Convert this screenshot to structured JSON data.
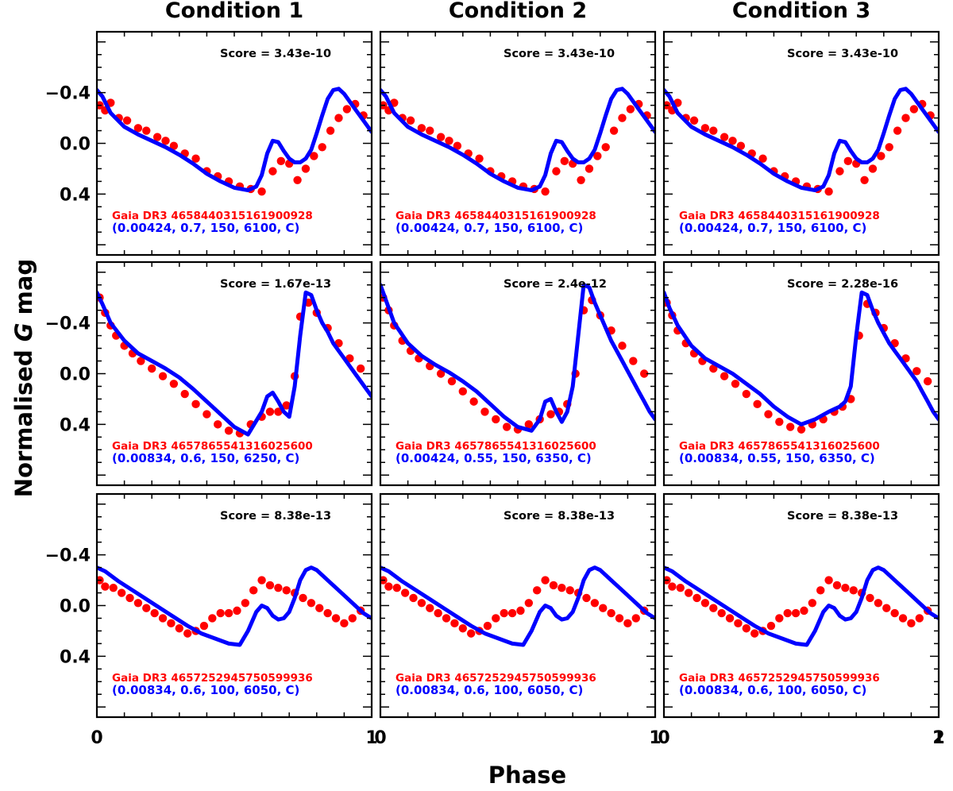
{
  "figure": {
    "ylabel_prefix": "Normalised ",
    "ylabel_var": "G",
    "ylabel_suffix": " mag",
    "xlabel": "Phase",
    "column_titles": [
      "Condition 1",
      "Condition 2",
      "Condition 3"
    ]
  },
  "colors": {
    "observed": "#ff0000",
    "model": "#0000ff",
    "score_text": "#000000",
    "axes": "#000000"
  },
  "chart_data": [
    {
      "type": "scatter+line",
      "row": 0,
      "col": 0,
      "score_text": "Score = 3.43e-10",
      "gaia_id": "Gaia DR3 4658440315161900928",
      "params": "(0.00424, 0.7, 150, 6100, C)",
      "shape": "A",
      "ylim": [
        0.88,
        -0.88
      ],
      "xlim": [
        0,
        1
      ],
      "yticks": [
        "−0.4",
        "0.0",
        "0.4"
      ],
      "ytick_values": [
        -0.4,
        0.0,
        0.4
      ],
      "xticks": [
        "0",
        "1"
      ],
      "xtick_values": [
        0,
        1
      ]
    },
    {
      "type": "scatter+line",
      "row": 0,
      "col": 1,
      "score_text": "Score = 3.43e-10",
      "gaia_id": "Gaia DR3 4658440315161900928",
      "params": "(0.00424, 0.7, 150, 6100, C)",
      "shape": "A",
      "ylim": [
        0.88,
        -0.88
      ],
      "xlim": [
        0,
        1
      ],
      "xticks": [
        "1"
      ],
      "xtick_values": [
        1
      ]
    },
    {
      "type": "scatter+line",
      "row": 0,
      "col": 2,
      "score_text": "Score = 3.43e-10",
      "gaia_id": "Gaia DR3 4658440315161900928",
      "params": "(0.00424, 0.7, 150, 6100, C)",
      "shape": "A",
      "ylim": [
        0.88,
        -0.88
      ],
      "xlim": [
        0,
        1
      ],
      "xticks": [
        "1",
        "2"
      ],
      "xtick_values": [
        1,
        2
      ]
    },
    {
      "type": "scatter+line",
      "row": 1,
      "col": 0,
      "score_text": "Score = 1.67e-13",
      "gaia_id": "Gaia DR3 4657865541316025600",
      "params": "(0.00834, 0.6, 150, 6250, C)",
      "shape": "B",
      "ylim": [
        0.88,
        -0.88
      ],
      "xlim": [
        0,
        1
      ],
      "yticks": [
        "−0.4",
        "0.0",
        "0.4"
      ],
      "ytick_values": [
        -0.4,
        0.0,
        0.4
      ]
    },
    {
      "type": "scatter+line",
      "row": 1,
      "col": 1,
      "score_text": "Score = 2.4e-12",
      "gaia_id": "Gaia DR3 4657865541316025600",
      "params": "(0.00424, 0.55, 150, 6350, C)",
      "shape": "B2",
      "ylim": [
        0.88,
        -0.88
      ],
      "xlim": [
        0,
        1
      ]
    },
    {
      "type": "scatter+line",
      "row": 1,
      "col": 2,
      "score_text": "Score = 2.28e-16",
      "gaia_id": "Gaia DR3 4657865541316025600",
      "params": "(0.00834, 0.55, 150, 6350, C)",
      "shape": "B3",
      "ylim": [
        0.88,
        -0.88
      ],
      "xlim": [
        0,
        1
      ]
    },
    {
      "type": "scatter+line",
      "row": 2,
      "col": 0,
      "score_text": "Score = 8.38e-13",
      "gaia_id": "Gaia DR3 4657252945750599936",
      "params": "(0.00834, 0.6, 100, 6050, C)",
      "shape": "C",
      "ylim": [
        0.88,
        -0.88
      ],
      "xlim": [
        0,
        1
      ],
      "yticks": [
        "−0.4",
        "0.0",
        "0.4"
      ],
      "ytick_values": [
        -0.4,
        0.0,
        0.4
      ],
      "xticks": [
        "0",
        "1"
      ],
      "xtick_values": [
        0,
        1
      ]
    },
    {
      "type": "scatter+line",
      "row": 2,
      "col": 1,
      "score_text": "Score = 8.38e-13",
      "gaia_id": "Gaia DR3 4657252945750599936",
      "params": "(0.00834, 0.6, 100, 6050, C)",
      "shape": "C",
      "ylim": [
        0.88,
        -0.88
      ],
      "xlim": [
        0,
        1
      ],
      "xticks": [
        "0",
        "1"
      ],
      "xtick_values": [
        0,
        1
      ]
    },
    {
      "type": "scatter+line",
      "row": 2,
      "col": 2,
      "score_text": "Score = 8.38e-13",
      "gaia_id": "Gaia DR3 4657252945750599936",
      "params": "(0.00834, 0.6, 100, 6050, C)",
      "shape": "C",
      "ylim": [
        0.88,
        -0.88
      ],
      "xlim": [
        0,
        1
      ],
      "xticks": [
        "0",
        "1",
        "2"
      ],
      "xtick_values": [
        0,
        1,
        2
      ]
    }
  ],
  "curves": {
    "A": {
      "model_phase": [
        0.0,
        0.02,
        0.05,
        0.1,
        0.15,
        0.2,
        0.25,
        0.3,
        0.35,
        0.4,
        0.45,
        0.5,
        0.55,
        0.58,
        0.6,
        0.62,
        0.64,
        0.66,
        0.68,
        0.7,
        0.72,
        0.74,
        0.76,
        0.78,
        0.8,
        0.82,
        0.84,
        0.86,
        0.88,
        0.9,
        0.92,
        0.94,
        0.96,
        0.98,
        1.0
      ],
      "model_mag": [
        -0.42,
        -0.37,
        -0.24,
        -0.13,
        -0.07,
        -0.02,
        0.03,
        0.09,
        0.16,
        0.24,
        0.3,
        0.35,
        0.37,
        0.34,
        0.25,
        0.08,
        -0.02,
        -0.01,
        0.06,
        0.12,
        0.15,
        0.15,
        0.12,
        0.05,
        -0.08,
        -0.22,
        -0.35,
        -0.42,
        -0.43,
        -0.39,
        -0.33,
        -0.27,
        -0.21,
        -0.15,
        -0.09
      ],
      "obs_phase": [
        0.01,
        0.03,
        0.05,
        0.08,
        0.11,
        0.15,
        0.18,
        0.22,
        0.25,
        0.28,
        0.32,
        0.36,
        0.4,
        0.44,
        0.48,
        0.52,
        0.56,
        0.6,
        0.64,
        0.67,
        0.7,
        0.73,
        0.76,
        0.79,
        0.82,
        0.85,
        0.88,
        0.91,
        0.94,
        0.97
      ],
      "obs_mag": [
        -0.3,
        -0.26,
        -0.32,
        -0.2,
        -0.18,
        -0.12,
        -0.1,
        -0.05,
        -0.02,
        0.02,
        0.08,
        0.12,
        0.22,
        0.26,
        0.3,
        0.34,
        0.36,
        0.38,
        0.22,
        0.14,
        0.16,
        0.29,
        0.2,
        0.1,
        0.03,
        -0.1,
        -0.2,
        -0.27,
        -0.31,
        -0.22
      ]
    },
    "B": {
      "model_phase": [
        0.0,
        0.02,
        0.05,
        0.1,
        0.15,
        0.2,
        0.25,
        0.3,
        0.35,
        0.4,
        0.45,
        0.5,
        0.55,
        0.6,
        0.62,
        0.64,
        0.66,
        0.68,
        0.7,
        0.72,
        0.74,
        0.76,
        0.78,
        0.8,
        0.82,
        0.84,
        0.86,
        0.88,
        0.9,
        0.92,
        0.94,
        0.96,
        0.98,
        1.0
      ],
      "model_mag": [
        -0.64,
        -0.55,
        -0.4,
        -0.26,
        -0.16,
        -0.1,
        -0.04,
        0.03,
        0.12,
        0.22,
        0.32,
        0.42,
        0.48,
        0.3,
        0.18,
        0.15,
        0.22,
        0.3,
        0.34,
        0.1,
        -0.3,
        -0.64,
        -0.62,
        -0.5,
        -0.4,
        -0.33,
        -0.24,
        -0.18,
        -0.12,
        -0.06,
        0.0,
        0.06,
        0.12,
        0.18
      ],
      "obs_phase": [
        0.01,
        0.03,
        0.05,
        0.07,
        0.1,
        0.13,
        0.16,
        0.2,
        0.24,
        0.28,
        0.32,
        0.36,
        0.4,
        0.44,
        0.48,
        0.52,
        0.56,
        0.6,
        0.63,
        0.66,
        0.69,
        0.72,
        0.74,
        0.77,
        0.8,
        0.84,
        0.88,
        0.92,
        0.96
      ],
      "obs_mag": [
        -0.6,
        -0.48,
        -0.38,
        -0.3,
        -0.22,
        -0.16,
        -0.1,
        -0.04,
        0.02,
        0.08,
        0.16,
        0.24,
        0.32,
        0.4,
        0.45,
        0.47,
        0.4,
        0.34,
        0.3,
        0.3,
        0.25,
        0.02,
        -0.45,
        -0.56,
        -0.48,
        -0.36,
        -0.24,
        -0.12,
        -0.04
      ]
    },
    "B2": {
      "model_phase": [
        0.0,
        0.02,
        0.05,
        0.1,
        0.15,
        0.2,
        0.25,
        0.3,
        0.35,
        0.4,
        0.45,
        0.5,
        0.55,
        0.58,
        0.6,
        0.62,
        0.64,
        0.66,
        0.68,
        0.7,
        0.72,
        0.74,
        0.76,
        0.78,
        0.8,
        0.82,
        0.84,
        0.86,
        0.88,
        0.9,
        0.92,
        0.94,
        0.96,
        0.98,
        1.0
      ],
      "model_mag": [
        -0.7,
        -0.58,
        -0.4,
        -0.24,
        -0.14,
        -0.07,
        -0.01,
        0.06,
        0.14,
        0.24,
        0.34,
        0.42,
        0.45,
        0.36,
        0.22,
        0.2,
        0.3,
        0.38,
        0.3,
        0.1,
        -0.3,
        -0.7,
        -0.68,
        -0.56,
        -0.46,
        -0.36,
        -0.26,
        -0.18,
        -0.1,
        -0.02,
        0.06,
        0.14,
        0.22,
        0.3,
        0.36
      ],
      "obs_phase": [
        0.01,
        0.03,
        0.05,
        0.08,
        0.11,
        0.14,
        0.18,
        0.22,
        0.26,
        0.3,
        0.34,
        0.38,
        0.42,
        0.46,
        0.5,
        0.54,
        0.58,
        0.62,
        0.65,
        0.68,
        0.71,
        0.74,
        0.77,
        0.8,
        0.84,
        0.88,
        0.92,
        0.96
      ],
      "obs_mag": [
        -0.6,
        -0.5,
        -0.38,
        -0.26,
        -0.18,
        -0.12,
        -0.06,
        0.0,
        0.06,
        0.14,
        0.22,
        0.3,
        0.36,
        0.42,
        0.44,
        0.4,
        0.36,
        0.32,
        0.3,
        0.24,
        0.0,
        -0.5,
        -0.58,
        -0.46,
        -0.34,
        -0.22,
        -0.1,
        0.0
      ]
    },
    "B3": {
      "model_phase": [
        0.0,
        0.02,
        0.05,
        0.1,
        0.15,
        0.2,
        0.25,
        0.3,
        0.35,
        0.4,
        0.45,
        0.5,
        0.55,
        0.6,
        0.62,
        0.64,
        0.66,
        0.68,
        0.7,
        0.72,
        0.74,
        0.76,
        0.78,
        0.8,
        0.82,
        0.84,
        0.86,
        0.88,
        0.9,
        0.92,
        0.94,
        0.96,
        0.98,
        1.0
      ],
      "model_mag": [
        -0.64,
        -0.52,
        -0.38,
        -0.22,
        -0.12,
        -0.06,
        0.0,
        0.08,
        0.16,
        0.26,
        0.34,
        0.4,
        0.36,
        0.3,
        0.28,
        0.26,
        0.22,
        0.1,
        -0.3,
        -0.64,
        -0.62,
        -0.5,
        -0.4,
        -0.32,
        -0.24,
        -0.18,
        -0.12,
        -0.06,
        0.0,
        0.06,
        0.14,
        0.22,
        0.3,
        0.36
      ],
      "obs_phase": [
        0.01,
        0.03,
        0.05,
        0.08,
        0.11,
        0.14,
        0.18,
        0.22,
        0.26,
        0.3,
        0.34,
        0.38,
        0.42,
        0.46,
        0.5,
        0.54,
        0.58,
        0.62,
        0.65,
        0.68,
        0.71,
        0.74,
        0.77,
        0.8,
        0.84,
        0.88,
        0.92,
        0.96
      ],
      "obs_mag": [
        -0.56,
        -0.46,
        -0.34,
        -0.24,
        -0.16,
        -0.1,
        -0.04,
        0.02,
        0.08,
        0.16,
        0.24,
        0.32,
        0.38,
        0.42,
        0.44,
        0.4,
        0.36,
        0.3,
        0.26,
        0.2,
        -0.3,
        -0.55,
        -0.48,
        -0.36,
        -0.24,
        -0.12,
        -0.02,
        0.06
      ]
    },
    "C": {
      "model_phase": [
        0.0,
        0.03,
        0.08,
        0.13,
        0.18,
        0.23,
        0.28,
        0.33,
        0.38,
        0.43,
        0.48,
        0.52,
        0.55,
        0.58,
        0.6,
        0.62,
        0.64,
        0.66,
        0.68,
        0.7,
        0.72,
        0.74,
        0.76,
        0.78,
        0.8,
        0.82,
        0.85,
        0.88,
        0.91,
        0.94,
        0.97,
        1.0
      ],
      "model_mag": [
        -0.3,
        -0.27,
        -0.19,
        -0.12,
        -0.05,
        0.02,
        0.09,
        0.16,
        0.22,
        0.26,
        0.3,
        0.31,
        0.2,
        0.05,
        0.0,
        0.02,
        0.08,
        0.11,
        0.1,
        0.05,
        -0.06,
        -0.2,
        -0.28,
        -0.3,
        -0.28,
        -0.24,
        -0.18,
        -0.12,
        -0.06,
        0.0,
        0.06,
        0.1
      ],
      "obs_phase": [
        0.01,
        0.03,
        0.06,
        0.09,
        0.12,
        0.15,
        0.18,
        0.21,
        0.24,
        0.27,
        0.3,
        0.33,
        0.36,
        0.39,
        0.42,
        0.45,
        0.48,
        0.51,
        0.54,
        0.57,
        0.6,
        0.63,
        0.66,
        0.69,
        0.72,
        0.75,
        0.78,
        0.81,
        0.84,
        0.87,
        0.9,
        0.93,
        0.96
      ],
      "obs_mag": [
        -0.2,
        -0.15,
        -0.14,
        -0.1,
        -0.06,
        -0.02,
        0.02,
        0.06,
        0.1,
        0.14,
        0.18,
        0.22,
        0.2,
        0.16,
        0.1,
        0.06,
        0.06,
        0.04,
        -0.02,
        -0.12,
        -0.2,
        -0.16,
        -0.14,
        -0.12,
        -0.1,
        -0.06,
        -0.02,
        0.02,
        0.06,
        0.1,
        0.14,
        0.1,
        0.04
      ]
    }
  }
}
